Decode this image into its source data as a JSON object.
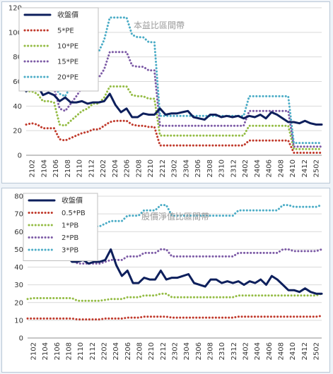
{
  "charts": [
    {
      "overlay_text": "本益比區間帶",
      "chart_data": {
        "type": "line",
        "title": "",
        "xlabel": "",
        "ylabel": "",
        "ylim": [
          0,
          120
        ],
        "yticks": [
          0,
          20,
          40,
          60,
          80,
          100,
          120
        ],
        "grid": true,
        "legend": "top-left",
        "x_tick_labels": [
          "2102",
          "2104",
          "2106",
          "2108",
          "2110",
          "2112",
          "2202",
          "2204",
          "2206",
          "2208",
          "2210",
          "2212",
          "2302",
          "2304",
          "2306",
          "2308",
          "2310",
          "2312",
          "2402",
          "2404",
          "2406",
          "2408",
          "2410",
          "2412",
          "2502"
        ],
        "series": [
          {
            "name": "收盤價",
            "color": "#0d1f5c",
            "style": "solid",
            "values": [
              52,
              55,
              57,
              49,
              51,
              49,
              44,
              47,
              43,
              43,
              44,
              42,
              43,
              43,
              44,
              50,
              41,
              35,
              38,
              31,
              31,
              34,
              33,
              33,
              38,
              33,
              34,
              34,
              35,
              36,
              31,
              30,
              29,
              33,
              33,
              31,
              32,
              31,
              32,
              30,
              32,
              31,
              33,
              30,
              35,
              33,
              30,
              27,
              27,
              26,
              28,
              26,
              25,
              25
            ]
          },
          {
            "name": "5*PE",
            "color": "#c0392b",
            "style": "dotted",
            "values": [
              25,
              26,
              25,
              22,
              22,
              22,
              13,
              12,
              14,
              16,
              18,
              19,
              21,
              21,
              24,
              27,
              28,
              28,
              28,
              25,
              24,
              24,
              23,
              23,
              8,
              8,
              8,
              8,
              8,
              8,
              8,
              8,
              8,
              8,
              8,
              8,
              8,
              8,
              8,
              8,
              12,
              12,
              12,
              12,
              12,
              12,
              12,
              12,
              2,
              2,
              2,
              2,
              2,
              2
            ]
          },
          {
            "name": "10*PE",
            "color": "#94bc44",
            "style": "dotted",
            "values": [
              52,
              52,
              50,
              44,
              44,
              43,
              25,
              24,
              28,
              32,
              36,
              38,
              42,
              42,
              47,
              56,
              56,
              56,
              56,
              49,
              48,
              48,
              46,
              46,
              16,
              16,
              16,
              16,
              16,
              16,
              16,
              16,
              16,
              16,
              16,
              16,
              16,
              16,
              16,
              16,
              24,
              24,
              24,
              24,
              24,
              24,
              24,
              24,
              5,
              5,
              5,
              5,
              5,
              5
            ]
          },
          {
            "name": "15*PE",
            "color": "#7d5ba6",
            "style": "dotted",
            "values": [
              53,
              55,
              55,
              54,
              55,
              55,
              38,
              36,
              42,
              48,
              55,
              57,
              62,
              63,
              70,
              84,
              84,
              84,
              84,
              73,
              72,
              72,
              69,
              69,
              24,
              24,
              24,
              24,
              24,
              24,
              24,
              24,
              24,
              24,
              24,
              24,
              24,
              24,
              24,
              24,
              36,
              36,
              36,
              36,
              36,
              36,
              36,
              36,
              7,
              7,
              7,
              7,
              7,
              7
            ]
          },
          {
            "name": "20*PE",
            "color": "#4bacc6",
            "style": "dotted",
            "values": [
              53,
              56,
              56,
              55,
              56,
              56,
              50,
              48,
              56,
              64,
              73,
              76,
              83,
              84,
              94,
              112,
              112,
              112,
              112,
              98,
              96,
              96,
              92,
              92,
              32,
              32,
              32,
              32,
              32,
              32,
              32,
              32,
              32,
              32,
              32,
              32,
              32,
              32,
              32,
              32,
              48,
              48,
              48,
              48,
              48,
              48,
              48,
              48,
              10,
              10,
              10,
              10,
              10,
              10
            ]
          }
        ]
      }
    },
    {
      "overlay_text": "股價淨值比區間帶",
      "chart_data": {
        "type": "line",
        "title": "",
        "xlabel": "",
        "ylabel": "",
        "ylim": [
          0,
          80
        ],
        "yticks": [
          0,
          10,
          20,
          30,
          40,
          50,
          60,
          70,
          80
        ],
        "grid": true,
        "legend": "top-left",
        "x_tick_labels": [
          "2102",
          "2104",
          "2106",
          "2108",
          "2110",
          "2112",
          "2202",
          "2204",
          "2206",
          "2208",
          "2210",
          "2212",
          "2302",
          "2304",
          "2306",
          "2308",
          "2310",
          "2312",
          "2402",
          "2404",
          "2406",
          "2408",
          "2410",
          "2412",
          "2502"
        ],
        "series": [
          {
            "name": "收盤價",
            "color": "#0d1f5c",
            "style": "solid",
            "values": [
              52,
              55,
              57,
              49,
              51,
              49,
              44,
              47,
              43,
              43,
              44,
              42,
              43,
              43,
              44,
              50,
              41,
              35,
              38,
              31,
              31,
              34,
              33,
              33,
              38,
              33,
              34,
              34,
              35,
              36,
              31,
              30,
              29,
              33,
              33,
              31,
              32,
              31,
              32,
              30,
              32,
              31,
              33,
              30,
              35,
              33,
              30,
              27,
              27,
              26,
              28,
              26,
              25,
              25
            ]
          },
          {
            "name": "0.5*PB",
            "color": "#c0392b",
            "style": "dotted",
            "values": [
              11,
              11,
              11,
              11,
              11,
              11,
              11,
              11,
              11,
              10.5,
              10.5,
              10.5,
              10.5,
              10.5,
              11,
              11,
              11,
              11,
              11.5,
              11.5,
              11.5,
              12,
              12,
              12,
              12,
              12,
              11.5,
              11.5,
              11.5,
              11.5,
              11.5,
              11.5,
              11.5,
              11.5,
              11.5,
              11.5,
              11.5,
              11.5,
              12,
              12,
              12,
              12,
              12,
              12,
              12,
              12,
              12,
              12,
              12,
              12,
              12,
              12,
              12,
              12.5
            ]
          },
          {
            "name": "1*PB",
            "color": "#94bc44",
            "style": "dotted",
            "values": [
              22,
              22.5,
              22.5,
              22.5,
              22.5,
              22.5,
              22.5,
              22.5,
              22.5,
              21,
              21,
              21,
              21,
              21,
              21.5,
              22,
              22,
              22,
              23,
              23,
              23,
              24,
              24,
              24,
              25,
              25,
              23,
              23,
              23,
              23,
              23,
              23,
              23,
              23,
              23,
              23,
              23,
              23,
              24,
              24,
              24,
              24,
              24,
              24,
              24,
              24,
              24,
              24,
              24,
              24,
              24,
              24,
              24,
              25
            ]
          },
          {
            "name": "2*PB",
            "color": "#7d5ba6",
            "style": "dotted",
            "values": [
              45,
              45.5,
              45.5,
              45.5,
              45.5,
              45.5,
              45.5,
              45.5,
              45.5,
              42,
              42,
              42,
              42,
              42,
              43,
              44,
              44,
              44,
              46,
              46,
              46,
              48,
              48,
              48,
              50,
              50,
              46,
              46,
              46,
              46,
              46,
              46,
              46,
              46,
              46,
              46,
              46,
              46,
              48,
              48,
              48,
              48,
              48,
              48,
              48,
              48,
              50,
              50,
              49,
              49,
              49,
              49,
              49,
              50
            ]
          },
          {
            "name": "3*PB",
            "color": "#4bacc6",
            "style": "dotted",
            "values": [
              67,
              68,
              68,
              68,
              68,
              68,
              68,
              68,
              68,
              63,
              63,
              63,
              63,
              63,
              64.5,
              66,
              66,
              66,
              69,
              69,
              69,
              72,
              72,
              72,
              75,
              75,
              69,
              69,
              69,
              69,
              69,
              69,
              69,
              69,
              69,
              69,
              69,
              69,
              72,
              72,
              72,
              72,
              72,
              72,
              72,
              72,
              75,
              75,
              74,
              74,
              74,
              74,
              74,
              75
            ]
          }
        ]
      }
    }
  ]
}
